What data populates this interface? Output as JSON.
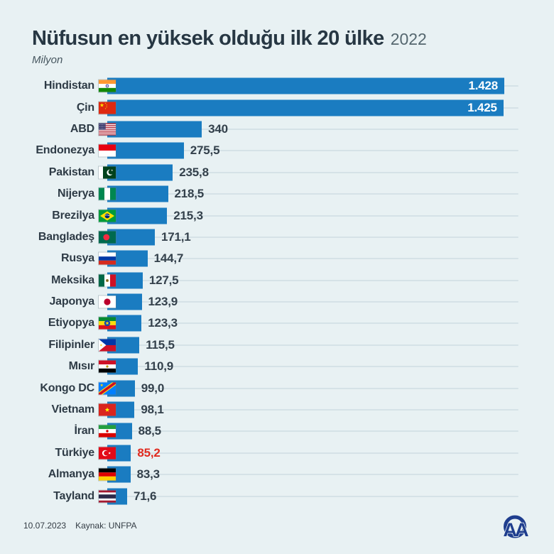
{
  "header": {
    "title": "Nüfusun en yüksek olduğu ilk 20 ülke",
    "year": "2022",
    "unit_label": "Milyon"
  },
  "chart_data": {
    "type": "bar",
    "orientation": "horizontal",
    "title": "Nüfusun en yüksek olduğu ilk 20 ülke",
    "year": "2022",
    "unit": "Milyon",
    "xlim": [
      0,
      1428
    ],
    "grid": "row tracks to right edge",
    "bar_color": "#1a7cc1",
    "highlight_color": "#e02b1f",
    "countries": [
      {
        "name": "Hindistan",
        "flag": "india",
        "value": 1428,
        "label": "1.428",
        "value_inside": true,
        "highlight": false
      },
      {
        "name": "Çin",
        "flag": "china",
        "value": 1425,
        "label": "1.425",
        "value_inside": true,
        "highlight": false
      },
      {
        "name": "ABD",
        "flag": "usa",
        "value": 340,
        "label": "340",
        "value_inside": false,
        "highlight": false
      },
      {
        "name": "Endonezya",
        "flag": "indonesia",
        "value": 275.5,
        "label": "275,5",
        "value_inside": false,
        "highlight": false
      },
      {
        "name": "Pakistan",
        "flag": "pakistan",
        "value": 235.8,
        "label": "235,8",
        "value_inside": false,
        "highlight": false
      },
      {
        "name": "Nijerya",
        "flag": "nigeria",
        "value": 218.5,
        "label": "218,5",
        "value_inside": false,
        "highlight": false
      },
      {
        "name": "Brezilya",
        "flag": "brazil",
        "value": 215.3,
        "label": "215,3",
        "value_inside": false,
        "highlight": false
      },
      {
        "name": "Bangladeş",
        "flag": "bangladesh",
        "value": 171.1,
        "label": "171,1",
        "value_inside": false,
        "highlight": false
      },
      {
        "name": "Rusya",
        "flag": "russia",
        "value": 144.7,
        "label": "144,7",
        "value_inside": false,
        "highlight": false
      },
      {
        "name": "Meksika",
        "flag": "mexico",
        "value": 127.5,
        "label": "127,5",
        "value_inside": false,
        "highlight": false
      },
      {
        "name": "Japonya",
        "flag": "japan",
        "value": 123.9,
        "label": "123,9",
        "value_inside": false,
        "highlight": false
      },
      {
        "name": "Etiyopya",
        "flag": "ethiopia",
        "value": 123.3,
        "label": "123,3",
        "value_inside": false,
        "highlight": false
      },
      {
        "name": "Filipinler",
        "flag": "philippines",
        "value": 115.5,
        "label": "115,5",
        "value_inside": false,
        "highlight": false
      },
      {
        "name": "Mısır",
        "flag": "egypt",
        "value": 110.9,
        "label": "110,9",
        "value_inside": false,
        "highlight": false
      },
      {
        "name": "Kongo DC",
        "flag": "drcongo",
        "value": 99.0,
        "label": "99,0",
        "value_inside": false,
        "highlight": false
      },
      {
        "name": "Vietnam",
        "flag": "vietnam",
        "value": 98.1,
        "label": "98,1",
        "value_inside": false,
        "highlight": false
      },
      {
        "name": "İran",
        "flag": "iran",
        "value": 88.5,
        "label": "88,5",
        "value_inside": false,
        "highlight": false
      },
      {
        "name": "Türkiye",
        "flag": "turkey",
        "value": 85.2,
        "label": "85,2",
        "value_inside": false,
        "highlight": true
      },
      {
        "name": "Almanya",
        "flag": "germany",
        "value": 83.3,
        "label": "83,3",
        "value_inside": false,
        "highlight": false
      },
      {
        "name": "Tayland",
        "flag": "thailand",
        "value": 71.6,
        "label": "71,6",
        "value_inside": false,
        "highlight": false
      }
    ]
  },
  "footer": {
    "date": "10.07.2023",
    "source": "Kaynak: UNFPA",
    "agency": "AA"
  },
  "colors": {
    "background": "#e8f1f3",
    "bar": "#1a7cc1",
    "text_dark": "#2e3b46",
    "highlight_red": "#e02b1f",
    "track": "#d5e2e7",
    "logo_navy": "#1f3e8e"
  }
}
